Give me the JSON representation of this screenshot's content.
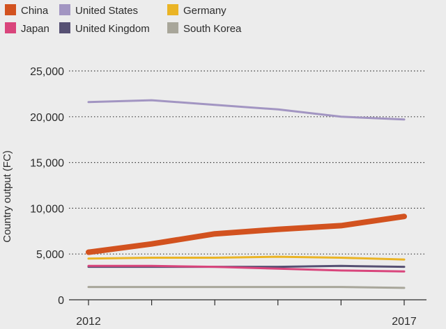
{
  "chart_data": {
    "type": "line",
    "title": "",
    "xlabel": "",
    "ylabel": "Country output (FC)",
    "x": [
      2012,
      2013,
      2014,
      2015,
      2016,
      2017
    ],
    "x_tick_labels": [
      "2012",
      "",
      "",
      "",
      "",
      "2017"
    ],
    "ylim": [
      0,
      25000
    ],
    "y_ticks": [
      0,
      5000,
      10000,
      15000,
      20000,
      25000
    ],
    "y_tick_labels": [
      "0",
      "5,000",
      "10,000",
      "15,000",
      "20,000",
      "25,000"
    ],
    "grid": "horizontal-dotted",
    "legend_position": "top",
    "series": [
      {
        "name": "China",
        "color": "#d2521f",
        "values": [
          5200,
          6100,
          7200,
          7700,
          8100,
          9100
        ]
      },
      {
        "name": "United States",
        "color": "#a295c2",
        "values": [
          21600,
          21800,
          21300,
          20800,
          20000,
          19700
        ]
      },
      {
        "name": "Germany",
        "color": "#eab425",
        "values": [
          4500,
          4600,
          4600,
          4700,
          4600,
          4400
        ]
      },
      {
        "name": "Japan",
        "color": "#d9457c",
        "values": [
          3700,
          3700,
          3600,
          3400,
          3200,
          3100
        ]
      },
      {
        "name": "United Kingdom",
        "color": "#565073",
        "values": [
          3600,
          3600,
          3600,
          3600,
          3700,
          3600
        ]
      },
      {
        "name": "South Korea",
        "color": "#a8a69a",
        "values": [
          1400,
          1400,
          1400,
          1400,
          1400,
          1300
        ]
      }
    ]
  }
}
